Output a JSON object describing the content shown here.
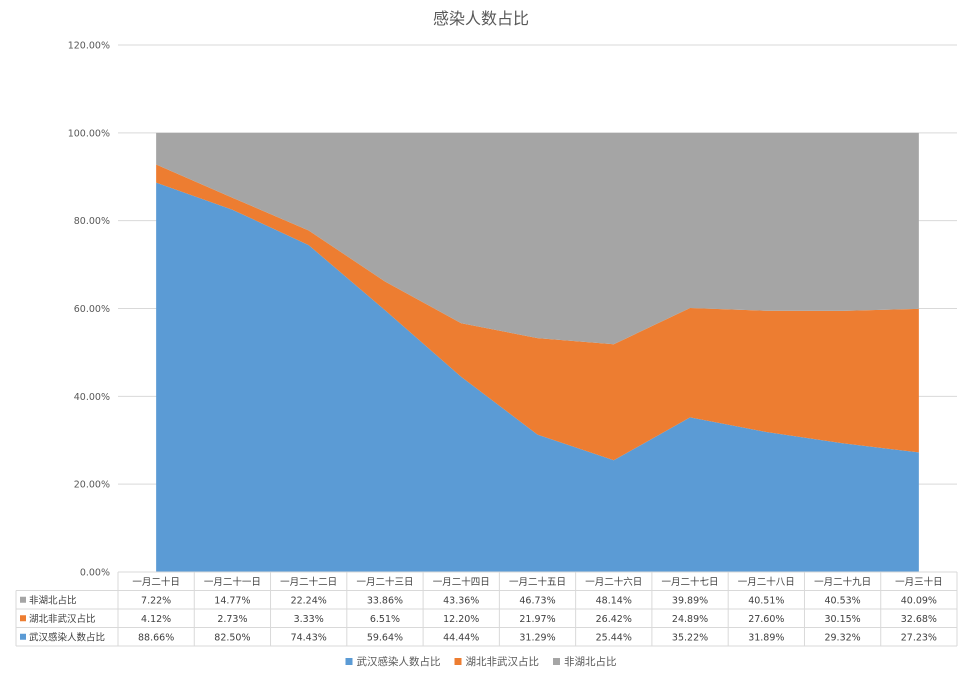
{
  "chart_data": {
    "type": "area",
    "stacked": true,
    "title": "感染人数占比",
    "y_ticks": [
      "0.00%",
      "20.00%",
      "40.00%",
      "60.00%",
      "80.00%",
      "100.00%",
      "120.00%"
    ],
    "ylim": [
      0,
      120
    ],
    "grid": "horizontal",
    "legend_position": "bottom",
    "categories": [
      "一月二十日",
      "一月二十一日",
      "一月二十二日",
      "一月二十三日",
      "一月二十四日",
      "一月二十五日",
      "一月二十六日",
      "一月二十七日",
      "一月二十八日",
      "一月二十九日",
      "一月三十日"
    ],
    "series": [
      {
        "name": "武汉感染人数占比",
        "color": "#5b9bd5",
        "values": [
          88.66,
          82.5,
          74.43,
          59.64,
          44.44,
          31.29,
          25.44,
          35.22,
          31.89,
          29.32,
          27.23
        ],
        "labels": [
          "88.66%",
          "82.50%",
          "74.43%",
          "59.64%",
          "44.44%",
          "31.29%",
          "25.44%",
          "35.22%",
          "31.89%",
          "29.32%",
          "27.23%"
        ]
      },
      {
        "name": "湖北非武汉占比",
        "color": "#ed7d31",
        "values": [
          4.12,
          2.73,
          3.33,
          6.51,
          12.2,
          21.97,
          26.42,
          24.89,
          27.6,
          30.15,
          32.68
        ],
        "labels": [
          "4.12%",
          "2.73%",
          "3.33%",
          "6.51%",
          "12.20%",
          "21.97%",
          "26.42%",
          "24.89%",
          "27.60%",
          "30.15%",
          "32.68%"
        ]
      },
      {
        "name": "非湖北占比",
        "color": "#a5a5a5",
        "values": [
          7.22,
          14.77,
          22.24,
          33.86,
          43.36,
          46.73,
          48.14,
          39.89,
          40.51,
          40.53,
          40.09
        ],
        "labels": [
          "7.22%",
          "14.77%",
          "22.24%",
          "33.86%",
          "43.36%",
          "46.73%",
          "48.14%",
          "39.89%",
          "40.51%",
          "40.53%",
          "40.09%"
        ]
      }
    ],
    "table_row_order": [
      "非湖北占比",
      "湖北非武汉占比",
      "武汉感染人数占比"
    ]
  }
}
